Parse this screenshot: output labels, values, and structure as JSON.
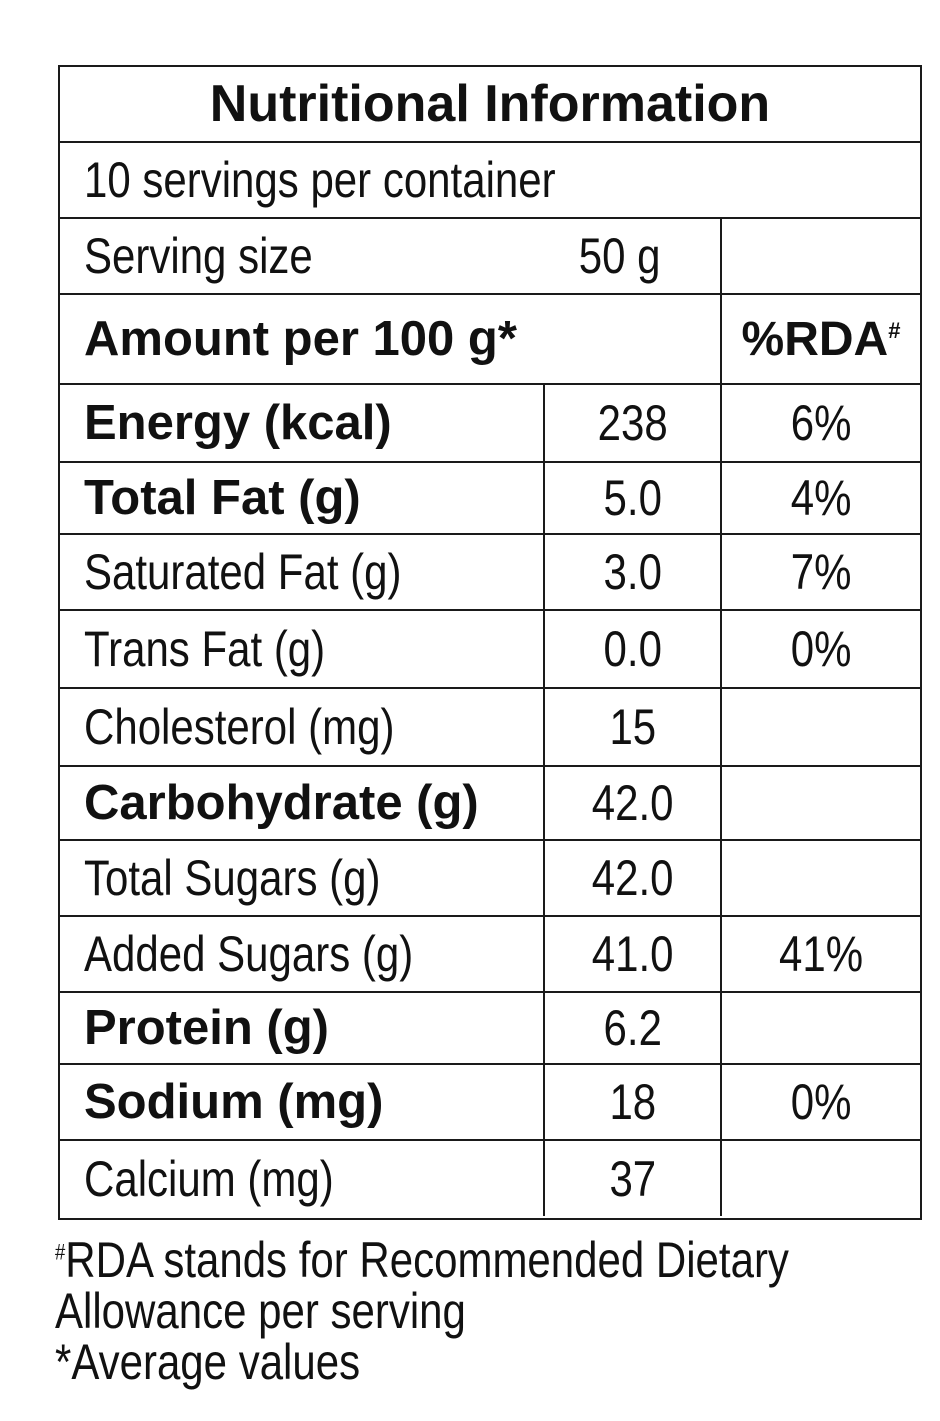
{
  "title": "Nutritional Information",
  "servings_per_container": "10 servings per container",
  "serving_size": {
    "label": "Serving size",
    "value": "50 g"
  },
  "amount_header": {
    "label": "Amount per 100 g*",
    "rda_label": "%RDA",
    "rda_mark": "#"
  },
  "nutrients": [
    {
      "name": "Energy (kcal)",
      "value": "238",
      "rda": "6%",
      "bold": true
    },
    {
      "name": "Total Fat (g)",
      "value": "5.0",
      "rda": "4%",
      "bold": true
    },
    {
      "name": "Saturated Fat (g)",
      "value": "3.0",
      "rda": "7%",
      "bold": false
    },
    {
      "name": "Trans Fat (g)",
      "value": "0.0",
      "rda": "0%",
      "bold": false
    },
    {
      "name": "Cholesterol (mg)",
      "value": "15",
      "rda": "",
      "bold": false
    },
    {
      "name": "Carbohydrate (g)",
      "value": "42.0",
      "rda": "",
      "bold": true
    },
    {
      "name": "Total Sugars (g)",
      "value": "42.0",
      "rda": "",
      "bold": false
    },
    {
      "name": "Added Sugars (g)",
      "value": "41.0",
      "rda": "41%",
      "bold": false
    },
    {
      "name": "Protein (g)",
      "value": "6.2",
      "rda": "",
      "bold": true
    },
    {
      "name": "Sodium (mg)",
      "value": "18",
      "rda": "0%",
      "bold": true
    },
    {
      "name": "Calcium (mg)",
      "value": "37",
      "rda": "",
      "bold": false
    }
  ],
  "footnotes": {
    "rda_mark": "#",
    "rda_line1": "RDA stands for Recommended Dietary",
    "rda_line2": "Allowance per serving",
    "avg_mark": "*",
    "avg_text": "Average values"
  }
}
